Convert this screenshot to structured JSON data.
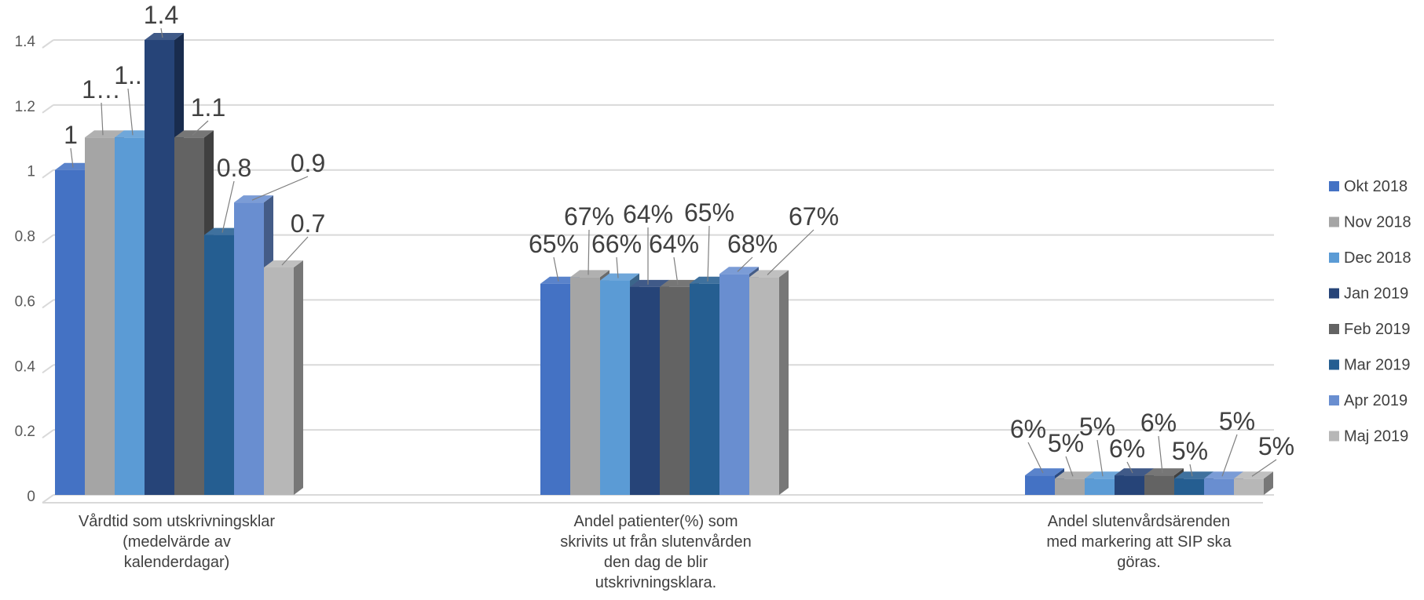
{
  "chart_data": {
    "type": "bar",
    "title": "",
    "xlabel": "",
    "ylabel": "",
    "ylim": [
      0,
      1.4
    ],
    "y_ticks": [
      "0",
      "0.2",
      "0.4",
      "0.6",
      "0.8",
      "1",
      "1.2",
      "1.4"
    ],
    "grid": true,
    "legend_position": "right",
    "style": "3d-clustered-column",
    "categories": [
      [
        "Vårdtid som utskrivningsklar",
        "(medelvärde av",
        "kalenderdagar)"
      ],
      [
        "Andel patienter(%) som",
        "skrivits ut från slutenvården",
        "den dag de blir",
        "utskrivningsklara."
      ],
      [
        "Andel slutenvårdsärenden",
        "med markering att SIP ska",
        "göras."
      ]
    ],
    "series": [
      {
        "name": "Okt 2018",
        "color": "#4472c4",
        "values": [
          1.0,
          0.65,
          0.06
        ],
        "labels": [
          "1",
          "65%",
          "6%"
        ]
      },
      {
        "name": "Nov 2018",
        "color": "#a5a5a5",
        "values": [
          1.1,
          0.67,
          0.05
        ],
        "labels": [
          "1…",
          "67%",
          "5%"
        ]
      },
      {
        "name": "Dec 2018",
        "color": "#5b9bd5",
        "values": [
          1.1,
          0.66,
          0.05
        ],
        "labels": [
          "1..",
          "66%",
          "5%"
        ]
      },
      {
        "name": "Jan 2019",
        "color": "#264478",
        "values": [
          1.4,
          0.64,
          0.06
        ],
        "labels": [
          "1.4",
          "64%",
          "6%"
        ]
      },
      {
        "name": "Feb 2019",
        "color": "#636363",
        "values": [
          1.1,
          0.64,
          0.06
        ],
        "labels": [
          "1.1",
          "64%",
          "6%"
        ]
      },
      {
        "name": "Mar 2019",
        "color": "#255e91",
        "values": [
          0.8,
          0.65,
          0.05
        ],
        "labels": [
          "0.8",
          "65%",
          "5%"
        ]
      },
      {
        "name": "Apr 2019",
        "color": "#698ed0",
        "values": [
          0.9,
          0.68,
          0.05
        ],
        "labels": [
          "0.9",
          "68%",
          "5%"
        ]
      },
      {
        "name": "Maj 2019",
        "color": "#b7b7b7",
        "values": [
          0.7,
          0.67,
          0.05
        ],
        "labels": [
          "0.7",
          "67%",
          "5%"
        ]
      }
    ]
  }
}
